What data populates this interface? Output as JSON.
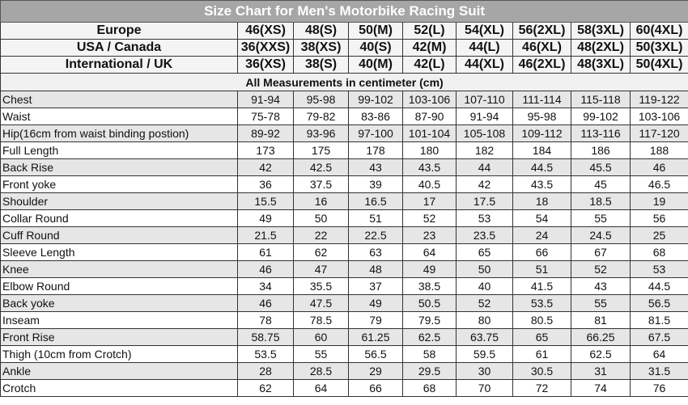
{
  "title": "Size Chart for Men's Motorbike Racing Suit",
  "size_rows": [
    {
      "label": "Europe",
      "values": [
        "46(XS)",
        "48(S)",
        "50(M)",
        "52(L)",
        "54(XL)",
        "56(2XL)",
        "58(3XL)",
        "60(4XL)"
      ]
    },
    {
      "label": "USA / Canada",
      "values": [
        "36(XXS)",
        "38(XS)",
        "40(S)",
        "42(M)",
        "44(L)",
        "46(XL)",
        "48(2XL)",
        "50(3XL)"
      ]
    },
    {
      "label": "International / UK",
      "values": [
        "36(XS)",
        "38(S)",
        "40(M)",
        "42(L)",
        "44(XL)",
        "46(2XL)",
        "48(3XL)",
        "50(4XL)"
      ]
    }
  ],
  "note": "All Measurements in centimeter (cm)",
  "measurements": [
    {
      "label": "Chest",
      "values": [
        "91-94",
        "95-98",
        "99-102",
        "103-106",
        "107-110",
        "111-114",
        "115-118",
        "119-122"
      ]
    },
    {
      "label": "Waist",
      "values": [
        "75-78",
        "79-82",
        "83-86",
        "87-90",
        "91-94",
        "95-98",
        "99-102",
        "103-106"
      ]
    },
    {
      "label": "Hip(16cm from waist binding postion)",
      "values": [
        "89-92",
        "93-96",
        "97-100",
        "101-104",
        "105-108",
        "109-112",
        "113-116",
        "117-120"
      ]
    },
    {
      "label": "Full Length",
      "values": [
        "173",
        "175",
        "178",
        "180",
        "182",
        "184",
        "186",
        "188"
      ]
    },
    {
      "label": "Back Rise",
      "values": [
        "42",
        "42.5",
        "43",
        "43.5",
        "44",
        "44.5",
        "45.5",
        "46"
      ]
    },
    {
      "label": "Front yoke",
      "values": [
        "36",
        "37.5",
        "39",
        "40.5",
        "42",
        "43.5",
        "45",
        "46.5"
      ]
    },
    {
      "label": "Shoulder",
      "values": [
        "15.5",
        "16",
        "16.5",
        "17",
        "17.5",
        "18",
        "18.5",
        "19"
      ]
    },
    {
      "label": "Collar Round",
      "values": [
        "49",
        "50",
        "51",
        "52",
        "53",
        "54",
        "55",
        "56"
      ]
    },
    {
      "label": "Cuff Round",
      "values": [
        "21.5",
        "22",
        "22.5",
        "23",
        "23.5",
        "24",
        "24.5",
        "25"
      ]
    },
    {
      "label": "Sleeve Length",
      "values": [
        "61",
        "62",
        "63",
        "64",
        "65",
        "66",
        "67",
        "68"
      ]
    },
    {
      "label": "Knee",
      "values": [
        "46",
        "47",
        "48",
        "49",
        "50",
        "51",
        "52",
        "53"
      ]
    },
    {
      "label": "Elbow Round",
      "values": [
        "34",
        "35.5",
        "37",
        "38.5",
        "40",
        "41.5",
        "43",
        "44.5"
      ]
    },
    {
      "label": "Back yoke",
      "values": [
        "46",
        "47.5",
        "49",
        "50.5",
        "52",
        "53.5",
        "55",
        "56.5"
      ]
    },
    {
      "label": "Inseam",
      "values": [
        "78",
        "78.5",
        "79",
        "79.5",
        "80",
        "80.5",
        "81",
        "81.5"
      ]
    },
    {
      "label": "Front Rise",
      "values": [
        "58.75",
        "60",
        "61.25",
        "62.5",
        "63.75",
        "65",
        "66.25",
        "67.5"
      ]
    },
    {
      "label": "Thigh (10cm from Crotch)",
      "values": [
        "53.5",
        "55",
        "56.5",
        "58",
        "59.5",
        "61",
        "62.5",
        "64"
      ]
    },
    {
      "label": "Ankle",
      "values": [
        "28",
        "28.5",
        "29",
        "29.5",
        "30",
        "30.5",
        "31",
        "31.5"
      ]
    },
    {
      "label": "Crotch",
      "values": [
        "62",
        "64",
        "66",
        "68",
        "70",
        "72",
        "74",
        "76"
      ]
    }
  ]
}
